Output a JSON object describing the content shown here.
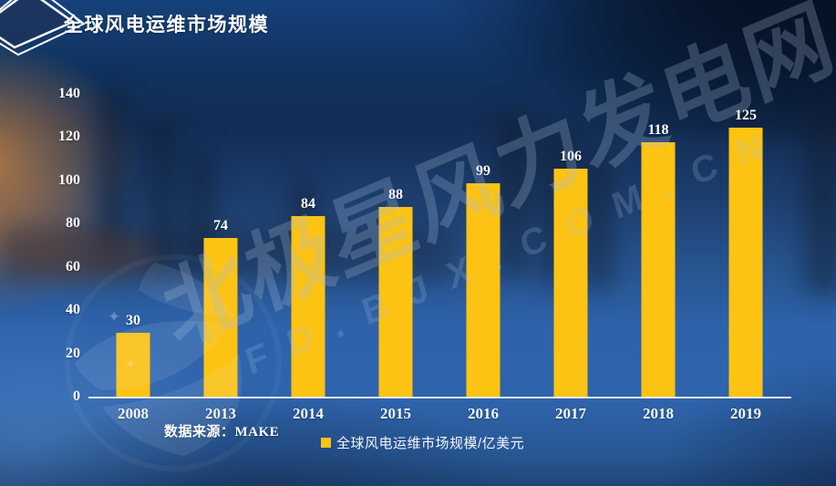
{
  "title": "全球风电运维市场规模",
  "source_note": "数据来源：MAKE",
  "legend": {
    "label": "全球风电运维市场规模/亿美元",
    "swatch_color": "#FDC313"
  },
  "watermark": {
    "line1": "北极星风力发电网",
    "line2": "FD.BJX.COM.CN"
  },
  "colors": {
    "bar": "#FDC313",
    "axis_line": "#E8EDF4",
    "text": "#FFFFFF",
    "background_base": "#27548F"
  },
  "chart_data": {
    "type": "bar",
    "title": "全球风电运维市场规模",
    "categories": [
      "2008",
      "2013",
      "2014",
      "2015",
      "2016",
      "2017",
      "2018",
      "2019"
    ],
    "values": [
      30,
      74,
      84,
      88,
      99,
      106,
      118,
      125
    ],
    "series_name": "全球风电运维市场规模/亿美元",
    "xlabel": "",
    "ylabel": "",
    "ylim": [
      0,
      140
    ],
    "yticks": [
      0,
      20,
      40,
      60,
      80,
      100,
      120,
      140
    ],
    "grid": false,
    "legend_position": "bottom",
    "bar_color": "#FDC313",
    "unit": "亿美元",
    "data_source": "MAKE"
  }
}
